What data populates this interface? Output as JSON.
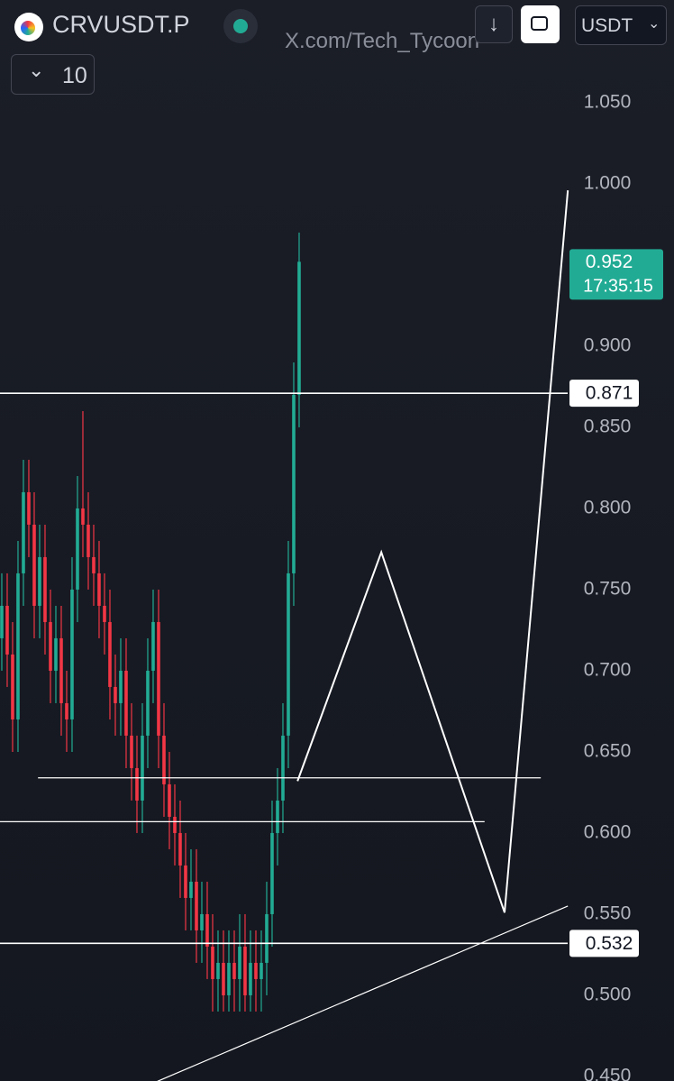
{
  "header": {
    "symbol": "CRVUSDT.P",
    "watermark": "X.com/Tech_Tycoon",
    "interval": "10",
    "currency": "USDT"
  },
  "chart_data": {
    "type": "candlestick",
    "up_color": "#22ab94",
    "down_color": "#f23645",
    "line_color": "#ffffff",
    "xlim": [
      -0.33,
      104.67
    ],
    "ylim": [
      0.4472,
      1.1133
    ],
    "yticks": [
      {
        "value": 0.45,
        "label": "0.450"
      },
      {
        "value": 0.5,
        "label": "0.500"
      },
      {
        "value": 0.55,
        "label": "0.550"
      },
      {
        "value": 0.6,
        "label": "0.600"
      },
      {
        "value": 0.65,
        "label": "0.650"
      },
      {
        "value": 0.7,
        "label": "0.700"
      },
      {
        "value": 0.75,
        "label": "0.750"
      },
      {
        "value": 0.8,
        "label": "0.800"
      },
      {
        "value": 0.85,
        "label": "0.850"
      },
      {
        "value": 0.9,
        "label": "0.900"
      },
      {
        "value": 1.0,
        "label": "1.000"
      },
      {
        "value": 1.05,
        "label": "1.050"
      }
    ],
    "open": [
      0.72,
      0.74,
      0.71,
      0.67,
      0.76,
      0.81,
      0.79,
      0.74,
      0.77,
      0.73,
      0.7,
      0.72,
      0.68,
      0.67,
      0.75,
      0.8,
      0.79,
      0.77,
      0.76,
      0.74,
      0.73,
      0.69,
      0.68,
      0.7,
      0.66,
      0.64,
      0.62,
      0.66,
      0.7,
      0.73,
      0.66,
      0.63,
      0.61,
      0.6,
      0.58,
      0.56,
      0.57,
      0.54,
      0.55,
      0.53,
      0.51,
      0.52,
      0.5,
      0.52,
      0.51,
      0.53,
      0.5,
      0.52,
      0.51,
      0.52,
      0.55,
      0.6,
      0.62,
      0.66,
      0.76,
      0.87
    ],
    "high": [
      0.76,
      0.76,
      0.73,
      0.78,
      0.83,
      0.83,
      0.81,
      0.79,
      0.79,
      0.75,
      0.74,
      0.74,
      0.7,
      0.77,
      0.82,
      0.86,
      0.81,
      0.79,
      0.78,
      0.76,
      0.75,
      0.71,
      0.72,
      0.72,
      0.68,
      0.66,
      0.68,
      0.72,
      0.75,
      0.75,
      0.68,
      0.65,
      0.63,
      0.62,
      0.6,
      0.59,
      0.59,
      0.57,
      0.57,
      0.55,
      0.54,
      0.54,
      0.54,
      0.54,
      0.55,
      0.55,
      0.54,
      0.54,
      0.54,
      0.57,
      0.62,
      0.64,
      0.68,
      0.78,
      0.89,
      0.97
    ],
    "low": [
      0.7,
      0.69,
      0.65,
      0.65,
      0.74,
      0.77,
      0.72,
      0.72,
      0.71,
      0.68,
      0.68,
      0.66,
      0.65,
      0.65,
      0.73,
      0.77,
      0.75,
      0.74,
      0.72,
      0.71,
      0.67,
      0.66,
      0.66,
      0.64,
      0.62,
      0.6,
      0.6,
      0.64,
      0.68,
      0.64,
      0.61,
      0.59,
      0.58,
      0.56,
      0.54,
      0.54,
      0.52,
      0.52,
      0.51,
      0.49,
      0.49,
      0.49,
      0.49,
      0.49,
      0.49,
      0.49,
      0.49,
      0.49,
      0.49,
      0.5,
      0.53,
      0.58,
      0.6,
      0.64,
      0.74,
      0.85
    ],
    "close": [
      0.74,
      0.71,
      0.67,
      0.76,
      0.81,
      0.79,
      0.74,
      0.77,
      0.73,
      0.7,
      0.72,
      0.68,
      0.67,
      0.75,
      0.8,
      0.79,
      0.77,
      0.76,
      0.74,
      0.73,
      0.69,
      0.68,
      0.7,
      0.66,
      0.64,
      0.62,
      0.66,
      0.7,
      0.73,
      0.66,
      0.63,
      0.61,
      0.6,
      0.58,
      0.56,
      0.57,
      0.54,
      0.55,
      0.53,
      0.51,
      0.52,
      0.5,
      0.52,
      0.51,
      0.53,
      0.5,
      0.52,
      0.51,
      0.52,
      0.55,
      0.6,
      0.62,
      0.66,
      0.76,
      0.87,
      0.952
    ],
    "last_price": {
      "value": 0.952,
      "countdown": "17:35:15"
    },
    "price_lines": [
      0.871,
      0.532
    ],
    "drawings": [
      {
        "x": [
          54.7,
          70.2,
          93.0,
          104.7
        ],
        "y": [
          0.632,
          0.773,
          0.551,
          0.996
        ]
      },
      {
        "x": [
          28.8,
          104.7
        ],
        "y": [
          0.447,
          0.555
        ]
      },
      {
        "x": [
          6.7,
          99.7
        ],
        "y": [
          0.634,
          0.634
        ]
      },
      {
        "x": [
          -0.33,
          89.3
        ],
        "y": [
          0.607,
          0.607
        ]
      }
    ]
  }
}
